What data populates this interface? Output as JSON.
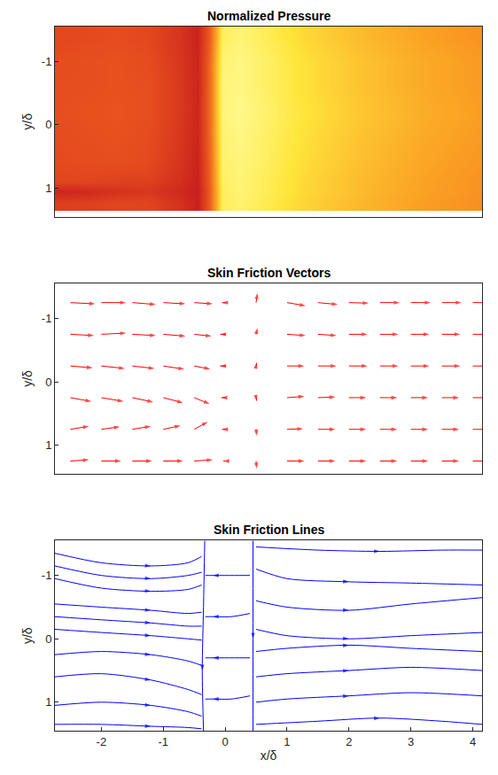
{
  "chart_data": [
    {
      "type": "heatmap",
      "title": "Normalized Pressure",
      "ylabel": "y/δ",
      "x": [
        -2.75,
        -2.25,
        -1.75,
        -1.25,
        -0.75,
        -0.45,
        -0.25,
        -0.05,
        0.25,
        0.75,
        1.25,
        1.75,
        2.25,
        2.75,
        3.25,
        3.75,
        4.2
      ],
      "y": [
        -1.4,
        -1.0,
        -0.6,
        -0.2,
        0.2,
        0.6,
        0.9,
        1.05,
        1.25
      ],
      "z": [
        [
          0.43,
          0.44,
          0.45,
          0.43,
          0.35,
          0.27,
          0.52,
          0.92,
          0.95,
          0.9,
          0.84,
          0.8,
          0.76,
          0.73,
          0.7,
          0.68,
          0.66
        ],
        [
          0.45,
          0.46,
          0.47,
          0.45,
          0.36,
          0.28,
          0.55,
          0.95,
          0.97,
          0.92,
          0.86,
          0.82,
          0.78,
          0.75,
          0.72,
          0.7,
          0.68
        ],
        [
          0.46,
          0.46,
          0.47,
          0.46,
          0.37,
          0.28,
          0.56,
          0.96,
          0.97,
          0.92,
          0.86,
          0.82,
          0.78,
          0.75,
          0.72,
          0.7,
          0.68
        ],
        [
          0.46,
          0.47,
          0.48,
          0.46,
          0.37,
          0.29,
          0.56,
          0.96,
          0.98,
          0.93,
          0.87,
          0.83,
          0.79,
          0.76,
          0.73,
          0.71,
          0.69
        ],
        [
          0.45,
          0.46,
          0.47,
          0.45,
          0.36,
          0.28,
          0.55,
          0.95,
          0.97,
          0.92,
          0.86,
          0.82,
          0.78,
          0.75,
          0.72,
          0.7,
          0.68
        ],
        [
          0.44,
          0.45,
          0.46,
          0.44,
          0.35,
          0.27,
          0.54,
          0.94,
          0.96,
          0.91,
          0.85,
          0.81,
          0.77,
          0.74,
          0.71,
          0.69,
          0.67
        ],
        [
          0.42,
          0.42,
          0.4,
          0.4,
          0.33,
          0.26,
          0.53,
          0.93,
          0.95,
          0.9,
          0.84,
          0.8,
          0.76,
          0.73,
          0.7,
          0.68,
          0.66
        ],
        [
          0.28,
          0.3,
          0.34,
          0.36,
          0.3,
          0.25,
          0.52,
          0.92,
          0.95,
          0.9,
          0.84,
          0.8,
          0.76,
          0.73,
          0.7,
          0.68,
          0.66
        ],
        [
          0.4,
          0.4,
          0.42,
          0.42,
          0.34,
          0.26,
          0.52,
          0.92,
          0.94,
          0.89,
          0.83,
          0.79,
          0.75,
          0.72,
          0.69,
          0.67,
          0.65
        ]
      ],
      "xlim": [
        -2.75,
        4.15
      ],
      "ylim": [
        1.45,
        -1.55
      ],
      "yticks": [
        -1,
        0,
        1
      ],
      "tick_labels": "y"
    },
    {
      "type": "quiver",
      "title": "Skin Friction Vectors",
      "ylabel": "y/δ",
      "color": "#ff0000",
      "x": [
        -2.5,
        -2,
        -1.5,
        -1,
        -0.5,
        0,
        0.5,
        1,
        1.5,
        2,
        2.5,
        3,
        3.5,
        4
      ],
      "y": [
        -1.25,
        -0.75,
        -0.25,
        0.25,
        0.75,
        1.25
      ],
      "u": [
        [
          0.4,
          0.4,
          0.38,
          0.36,
          0.3,
          -0.05,
          0.02,
          0.3,
          0.32,
          0.32,
          0.32,
          0.32,
          0.32,
          0.32
        ],
        [
          0.38,
          0.4,
          0.38,
          0.36,
          0.28,
          -0.08,
          0.02,
          0.3,
          0.3,
          0.3,
          0.3,
          0.3,
          0.3,
          0.3
        ],
        [
          0.36,
          0.38,
          0.36,
          0.34,
          0.26,
          -0.08,
          0.01,
          0.28,
          0.3,
          0.3,
          0.3,
          0.3,
          0.3,
          0.3
        ],
        [
          0.34,
          0.36,
          0.34,
          0.32,
          0.25,
          -0.06,
          0.01,
          0.28,
          0.28,
          0.28,
          0.28,
          0.28,
          0.28,
          0.28
        ],
        [
          0.3,
          0.3,
          0.3,
          0.28,
          0.22,
          -0.05,
          0.01,
          0.26,
          0.28,
          0.28,
          0.28,
          0.28,
          0.28,
          0.28
        ],
        [
          0.3,
          0.32,
          0.32,
          0.32,
          0.3,
          -0.03,
          0.01,
          0.28,
          0.28,
          0.28,
          0.28,
          0.28,
          0.28,
          0.28
        ]
      ],
      "v": [
        [
          0.02,
          0.0,
          0.03,
          0.02,
          0.02,
          0.0,
          -0.15,
          0.05,
          0.03,
          0.01,
          0.0,
          0.0,
          0.0,
          0.0
        ],
        [
          0.02,
          -0.02,
          0.02,
          0.03,
          0.03,
          0.0,
          -0.1,
          0.02,
          0.02,
          0.0,
          0.0,
          0.0,
          0.0,
          0.0
        ],
        [
          0.03,
          0.04,
          0.04,
          0.05,
          0.05,
          0.0,
          -0.05,
          0.0,
          0.0,
          0.0,
          0.0,
          0.0,
          0.0,
          0.0
        ],
        [
          0.06,
          0.06,
          0.07,
          0.08,
          0.1,
          0.0,
          0.05,
          -0.02,
          -0.01,
          0.0,
          0.0,
          0.0,
          0.0,
          0.0
        ],
        [
          -0.05,
          -0.04,
          -0.05,
          -0.06,
          -0.12,
          0.0,
          0.1,
          -0.01,
          0.0,
          0.0,
          0.0,
          0.0,
          0.0,
          0.0
        ],
        [
          -0.02,
          0.0,
          0.0,
          0.0,
          -0.02,
          0.0,
          0.12,
          0.0,
          0.0,
          0.0,
          0.0,
          0.0,
          0.0,
          0.0
        ]
      ],
      "xlim": [
        -2.75,
        4.15
      ],
      "ylim": [
        1.45,
        -1.55
      ],
      "yticks": [
        -1,
        0,
        1
      ],
      "tick_labels": "y"
    },
    {
      "type": "streamline",
      "title": "Skin Friction Lines",
      "xlabel": "x/δ",
      "ylabel": "y/δ",
      "color": "#0000ff",
      "lines": [
        {
          "x": [
            -2.75,
            -2,
            -1.2,
            -0.6,
            -0.38
          ],
          "y": [
            -1.35,
            -1.2,
            -1.15,
            -1.2,
            -1.3
          ]
        },
        {
          "x": [
            -2.75,
            -2,
            -1.2,
            -0.6,
            -0.38
          ],
          "y": [
            -1.15,
            -1.0,
            -0.95,
            -1.0,
            -1.05
          ]
        },
        {
          "x": [
            -2.75,
            -2,
            -1.2,
            -0.6,
            -0.38
          ],
          "y": [
            -0.95,
            -0.8,
            -0.75,
            -0.78,
            -0.85
          ]
        },
        {
          "x": [
            -2.75,
            -2,
            -1.2,
            -0.6,
            -0.38
          ],
          "y": [
            -0.55,
            -0.5,
            -0.45,
            -0.4,
            -0.42
          ]
        },
        {
          "x": [
            -2.75,
            -2,
            -1.2,
            -0.6,
            -0.38
          ],
          "y": [
            -0.35,
            -0.3,
            -0.25,
            -0.2,
            -0.2
          ]
        },
        {
          "x": [
            -2.75,
            -2,
            -1.2,
            -0.6,
            -0.38
          ],
          "y": [
            -0.15,
            -0.1,
            -0.05,
            0.0,
            0.02
          ]
        },
        {
          "x": [
            -2.75,
            -2,
            -1.2,
            -0.6,
            -0.38
          ],
          "y": [
            0.25,
            0.2,
            0.25,
            0.35,
            0.42
          ]
        },
        {
          "x": [
            -2.75,
            -2,
            -1.2,
            -0.6,
            -0.38
          ],
          "y": [
            0.6,
            0.55,
            0.65,
            0.8,
            0.88
          ]
        },
        {
          "x": [
            -2.75,
            -2,
            -1.2,
            -0.6,
            -0.38
          ],
          "y": [
            1.05,
            1.0,
            1.05,
            1.15,
            1.22
          ]
        },
        {
          "x": [
            -2.75,
            -2,
            -1.2,
            -0.6,
            -0.38
          ],
          "y": [
            1.35,
            1.35,
            1.38,
            1.4,
            1.42
          ]
        },
        {
          "x": [
            -0.33,
            -0.35,
            -0.37,
            -0.35
          ],
          "y": [
            -1.55,
            -0.5,
            0.5,
            1.45
          ]
        },
        {
          "x": [
            0.45,
            0.45,
            0.45
          ],
          "y": [
            -1.55,
            0.0,
            1.45
          ]
        },
        {
          "x": [
            0.4,
            0.1,
            -0.2,
            -0.32
          ],
          "y": [
            -1.0,
            -1.0,
            -1.0,
            -1.0
          ]
        },
        {
          "x": [
            0.4,
            0.1,
            -0.2,
            -0.32
          ],
          "y": [
            -0.4,
            -0.35,
            -0.35,
            -0.35
          ]
        },
        {
          "x": [
            0.4,
            0.1,
            -0.2,
            -0.32
          ],
          "y": [
            0.3,
            0.3,
            0.3,
            0.3
          ]
        },
        {
          "x": [
            0.4,
            0.1,
            -0.2,
            -0.32
          ],
          "y": [
            0.9,
            0.95,
            0.95,
            0.95
          ]
        },
        {
          "x": [
            0.5,
            1.5,
            2.5,
            3.5,
            4.15
          ],
          "y": [
            -1.45,
            -1.4,
            -1.38,
            -1.4,
            -1.4
          ]
        },
        {
          "x": [
            0.5,
            1,
            2,
            3,
            4.15
          ],
          "y": [
            -1.1,
            -0.95,
            -0.9,
            -0.88,
            -0.85
          ]
        },
        {
          "x": [
            0.5,
            1,
            2,
            3,
            4.15
          ],
          "y": [
            -0.6,
            -0.5,
            -0.45,
            -0.55,
            -0.65
          ]
        },
        {
          "x": [
            0.5,
            1,
            2,
            3,
            4.15
          ],
          "y": [
            -0.15,
            -0.05,
            0.0,
            -0.05,
            -0.1
          ]
        },
        {
          "x": [
            0.5,
            1,
            2,
            3,
            4.15
          ],
          "y": [
            0.2,
            0.15,
            0.1,
            0.15,
            0.2
          ]
        },
        {
          "x": [
            0.5,
            1,
            2,
            3,
            4.15
          ],
          "y": [
            0.6,
            0.55,
            0.5,
            0.45,
            0.5
          ]
        },
        {
          "x": [
            0.5,
            1,
            2,
            3,
            4.15
          ],
          "y": [
            1.0,
            0.95,
            0.9,
            0.85,
            0.9
          ]
        },
        {
          "x": [
            0.5,
            1.5,
            2.5,
            3.5,
            4.15
          ],
          "y": [
            1.35,
            1.3,
            1.25,
            1.3,
            1.35
          ]
        }
      ],
      "xlim": [
        -2.75,
        4.15
      ],
      "ylim": [
        1.45,
        -1.55
      ],
      "xticks": [
        -2,
        -1,
        0,
        1,
        2,
        3,
        4
      ],
      "yticks": [
        -1,
        0,
        1
      ]
    }
  ]
}
